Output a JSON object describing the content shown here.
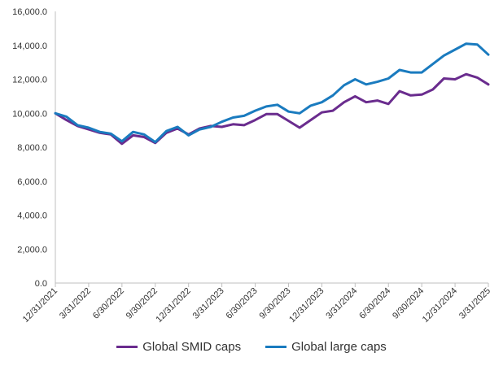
{
  "chart_data": {
    "type": "line",
    "title": "",
    "xlabel": "",
    "ylabel": "",
    "ylim": [
      0,
      16000
    ],
    "y_ticks": [
      "0.0",
      "2,000.0",
      "4,000.0",
      "6,000.0",
      "8,000.0",
      "10,000.0",
      "12,000.0",
      "14,000.0",
      "16,000.0"
    ],
    "x_tick_labels": [
      "12/31/2021",
      "3/31/2022",
      "6/30/2022",
      "9/30/2022",
      "12/31/2022",
      "3/31/2023",
      "6/30/2023",
      "9/30/2023",
      "12/31/2023",
      "3/31/2024",
      "6/30/2024",
      "9/30/2024",
      "12/31/2024",
      "3/31/2025"
    ],
    "months": 39,
    "series": [
      {
        "name": "Global SMID caps",
        "color": "#6a2c8e",
        "values": [
          10000,
          9600,
          9250,
          9050,
          8850,
          8750,
          8200,
          8700,
          8600,
          8250,
          8850,
          9100,
          8750,
          9100,
          9250,
          9200,
          9350,
          9300,
          9600,
          9950,
          9950,
          9550,
          9150,
          9600,
          10050,
          10150,
          10650,
          11000,
          10650,
          10750,
          10550,
          11300,
          11050,
          11100,
          11400,
          12050,
          12000,
          12300,
          12100,
          11700
        ]
      },
      {
        "name": "Global large caps",
        "color": "#1a7bbf",
        "values": [
          10000,
          9800,
          9300,
          9150,
          8900,
          8800,
          8350,
          8900,
          8750,
          8300,
          8950,
          9200,
          8700,
          9050,
          9200,
          9500,
          9750,
          9850,
          10150,
          10400,
          10500,
          10100,
          10000,
          10450,
          10650,
          11050,
          11650,
          12000,
          11700,
          11850,
          12050,
          12550,
          12400,
          12400,
          12900,
          13400,
          13750,
          14100,
          14050,
          13450
        ]
      }
    ],
    "legend": [
      "Global SMID caps",
      "Global large caps"
    ],
    "legend_position": "bottom",
    "grid": false
  }
}
